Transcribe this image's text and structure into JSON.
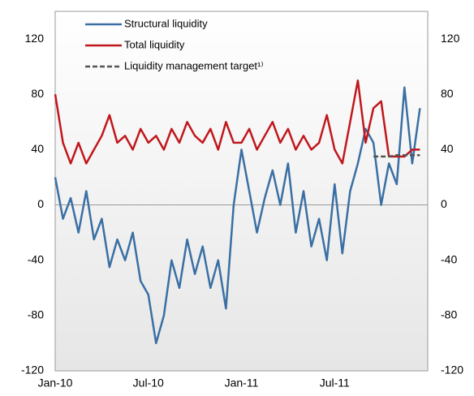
{
  "chart_data": {
    "type": "line",
    "x": [
      "Jan-10",
      null,
      null,
      null,
      null,
      null,
      null,
      null,
      null,
      null,
      null,
      null,
      "Jul-10",
      null,
      null,
      null,
      null,
      null,
      null,
      null,
      null,
      null,
      null,
      null,
      "Jan-11",
      null,
      null,
      null,
      null,
      null,
      null,
      null,
      null,
      null,
      null,
      null,
      "Jul-11",
      null,
      null,
      null,
      null,
      null,
      null,
      null,
      null,
      null,
      null,
      null
    ],
    "series": [
      {
        "name": "Structural liquidity",
        "color": "#3a6fa3",
        "dash": false,
        "values": [
          20,
          -10,
          5,
          -20,
          10,
          -25,
          -10,
          -45,
          -25,
          -40,
          -20,
          -55,
          -65,
          -100,
          -80,
          -40,
          -60,
          -25,
          -50,
          -30,
          -60,
          -40,
          -75,
          0,
          40,
          10,
          -20,
          5,
          25,
          0,
          30,
          -20,
          10,
          -30,
          -10,
          -40,
          15,
          -35,
          10,
          30,
          55,
          45,
          0,
          30,
          15,
          85,
          30,
          70
        ]
      },
      {
        "name": "Total liquidity",
        "color": "#c0171c",
        "dash": false,
        "values": [
          80,
          45,
          30,
          45,
          30,
          40,
          50,
          65,
          45,
          50,
          40,
          55,
          45,
          50,
          40,
          55,
          45,
          60,
          50,
          45,
          55,
          40,
          60,
          45,
          45,
          55,
          40,
          50,
          60,
          45,
          55,
          40,
          50,
          40,
          45,
          65,
          40,
          30,
          60,
          90,
          45,
          70,
          75,
          35,
          35,
          35,
          40,
          40
        ]
      },
      {
        "name": "Liquidity management target¹⁾",
        "color": "#555555",
        "dash": true,
        "values": [
          null,
          null,
          null,
          null,
          null,
          null,
          null,
          null,
          null,
          null,
          null,
          null,
          null,
          null,
          null,
          null,
          null,
          null,
          null,
          null,
          null,
          null,
          null,
          null,
          null,
          null,
          null,
          null,
          null,
          null,
          null,
          null,
          null,
          null,
          null,
          null,
          null,
          null,
          null,
          null,
          null,
          35,
          35,
          35,
          36,
          36,
          36,
          36
        ]
      }
    ],
    "ylim": [
      -120,
      140
    ],
    "yticks": [
      -120,
      -80,
      -40,
      0,
      40,
      80,
      120
    ],
    "y2lim": [
      -120,
      140
    ],
    "y2ticks": [
      -120,
      -80,
      -40,
      0,
      40,
      80,
      120
    ]
  }
}
